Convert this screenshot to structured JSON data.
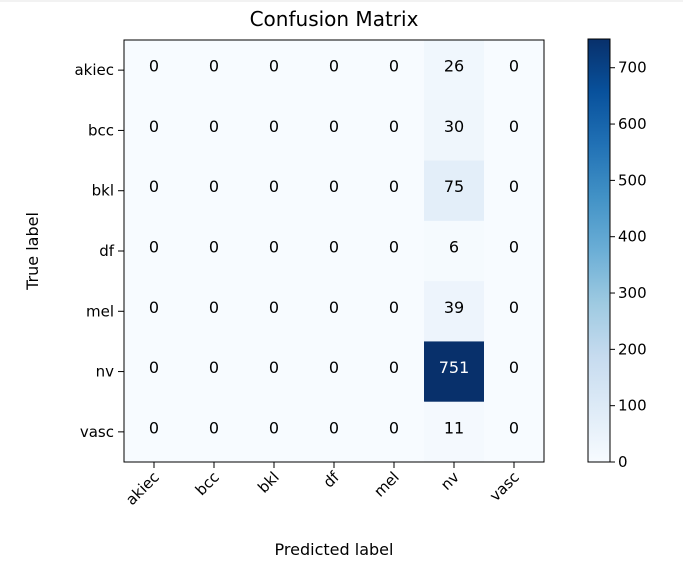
{
  "chart_data": {
    "type": "heatmap",
    "title": "Confusion Matrix",
    "xlabel": "Predicted label",
    "ylabel": "True label",
    "x_categories": [
      "akiec",
      "bcc",
      "bkl",
      "df",
      "mel",
      "nv",
      "vasc"
    ],
    "y_categories": [
      "akiec",
      "bcc",
      "bkl",
      "df",
      "mel",
      "nv",
      "vasc"
    ],
    "values": [
      [
        0,
        0,
        0,
        0,
        0,
        26,
        0
      ],
      [
        0,
        0,
        0,
        0,
        0,
        30,
        0
      ],
      [
        0,
        0,
        0,
        0,
        0,
        75,
        0
      ],
      [
        0,
        0,
        0,
        0,
        0,
        6,
        0
      ],
      [
        0,
        0,
        0,
        0,
        0,
        39,
        0
      ],
      [
        0,
        0,
        0,
        0,
        0,
        751,
        0
      ],
      [
        0,
        0,
        0,
        0,
        0,
        11,
        0
      ]
    ],
    "colormap": "Blues",
    "colorbar": {
      "min": 0,
      "max": 751,
      "ticks": [
        0,
        100,
        200,
        300,
        400,
        500,
        600,
        700
      ]
    },
    "colors": {
      "low": "#f7fbff",
      "high": "#08306b",
      "text_dark": "#000000",
      "text_light": "#ffffff"
    }
  }
}
